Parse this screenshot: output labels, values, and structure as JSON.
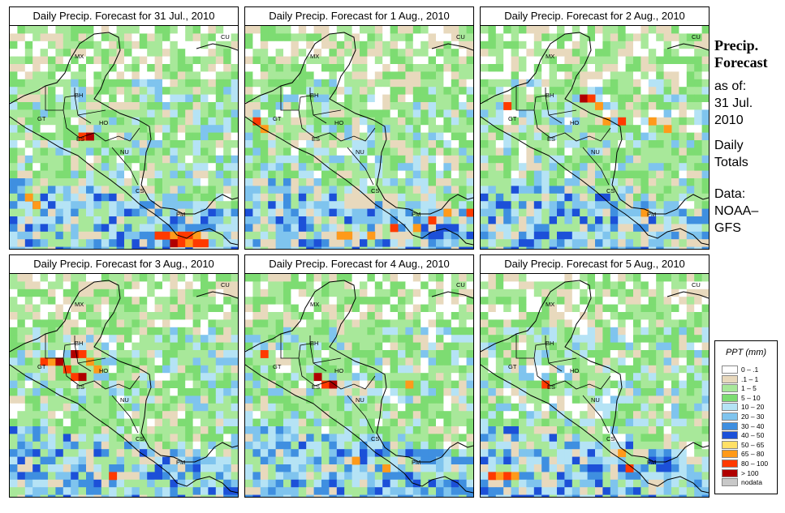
{
  "sidebar": {
    "title_line1": "Precip.",
    "title_line2": "Forecast",
    "asof_label": "as of:",
    "asof_date_line1": "31 Jul.",
    "asof_date_line2": "2010",
    "totals_line1": "Daily",
    "totals_line2": "Totals",
    "source_line1": "Data:",
    "source_line2": "NOAA–",
    "source_line3": "GFS"
  },
  "panels": [
    {
      "title": "Daily Precip. Forecast for  31 Jul., 2010"
    },
    {
      "title": "Daily Precip. Forecast for  1 Aug., 2010"
    },
    {
      "title": "Daily Precip. Forecast for  2 Aug., 2010"
    },
    {
      "title": "Daily Precip. Forecast for  3 Aug., 2010"
    },
    {
      "title": "Daily Precip. Forecast for  4 Aug., 2010"
    },
    {
      "title": "Daily Precip. Forecast for  5 Aug., 2010"
    }
  ],
  "country_labels": [
    "MX",
    "BH",
    "GT",
    "HO",
    "ES",
    "NU",
    "CS",
    "PM",
    "CU"
  ],
  "legend": {
    "title": "PPT (mm)",
    "classes": [
      {
        "label": "0 – .1",
        "color": "#ffffff"
      },
      {
        "label": ".1 – 1",
        "color": "#e8d9bd"
      },
      {
        "label": "1 – 5",
        "color": "#a8e89a"
      },
      {
        "label": "5 – 10",
        "color": "#7ddc72"
      },
      {
        "label": "10 – 20",
        "color": "#b5e3f5"
      },
      {
        "label": "20 – 30",
        "color": "#7fc4ee"
      },
      {
        "label": "30 – 40",
        "color": "#3f8fe0"
      },
      {
        "label": "40 – 50",
        "color": "#1c50d8"
      },
      {
        "label": "50 – 65",
        "color": "#ffe066"
      },
      {
        "label": "65 – 80",
        "color": "#ff9a1a"
      },
      {
        "label": "80 – 100",
        "color": "#ff3a00"
      },
      {
        "label": "> 100",
        "color": "#b00000"
      },
      {
        "label": "nodata",
        "color": "#c8c8c8"
      }
    ]
  }
}
